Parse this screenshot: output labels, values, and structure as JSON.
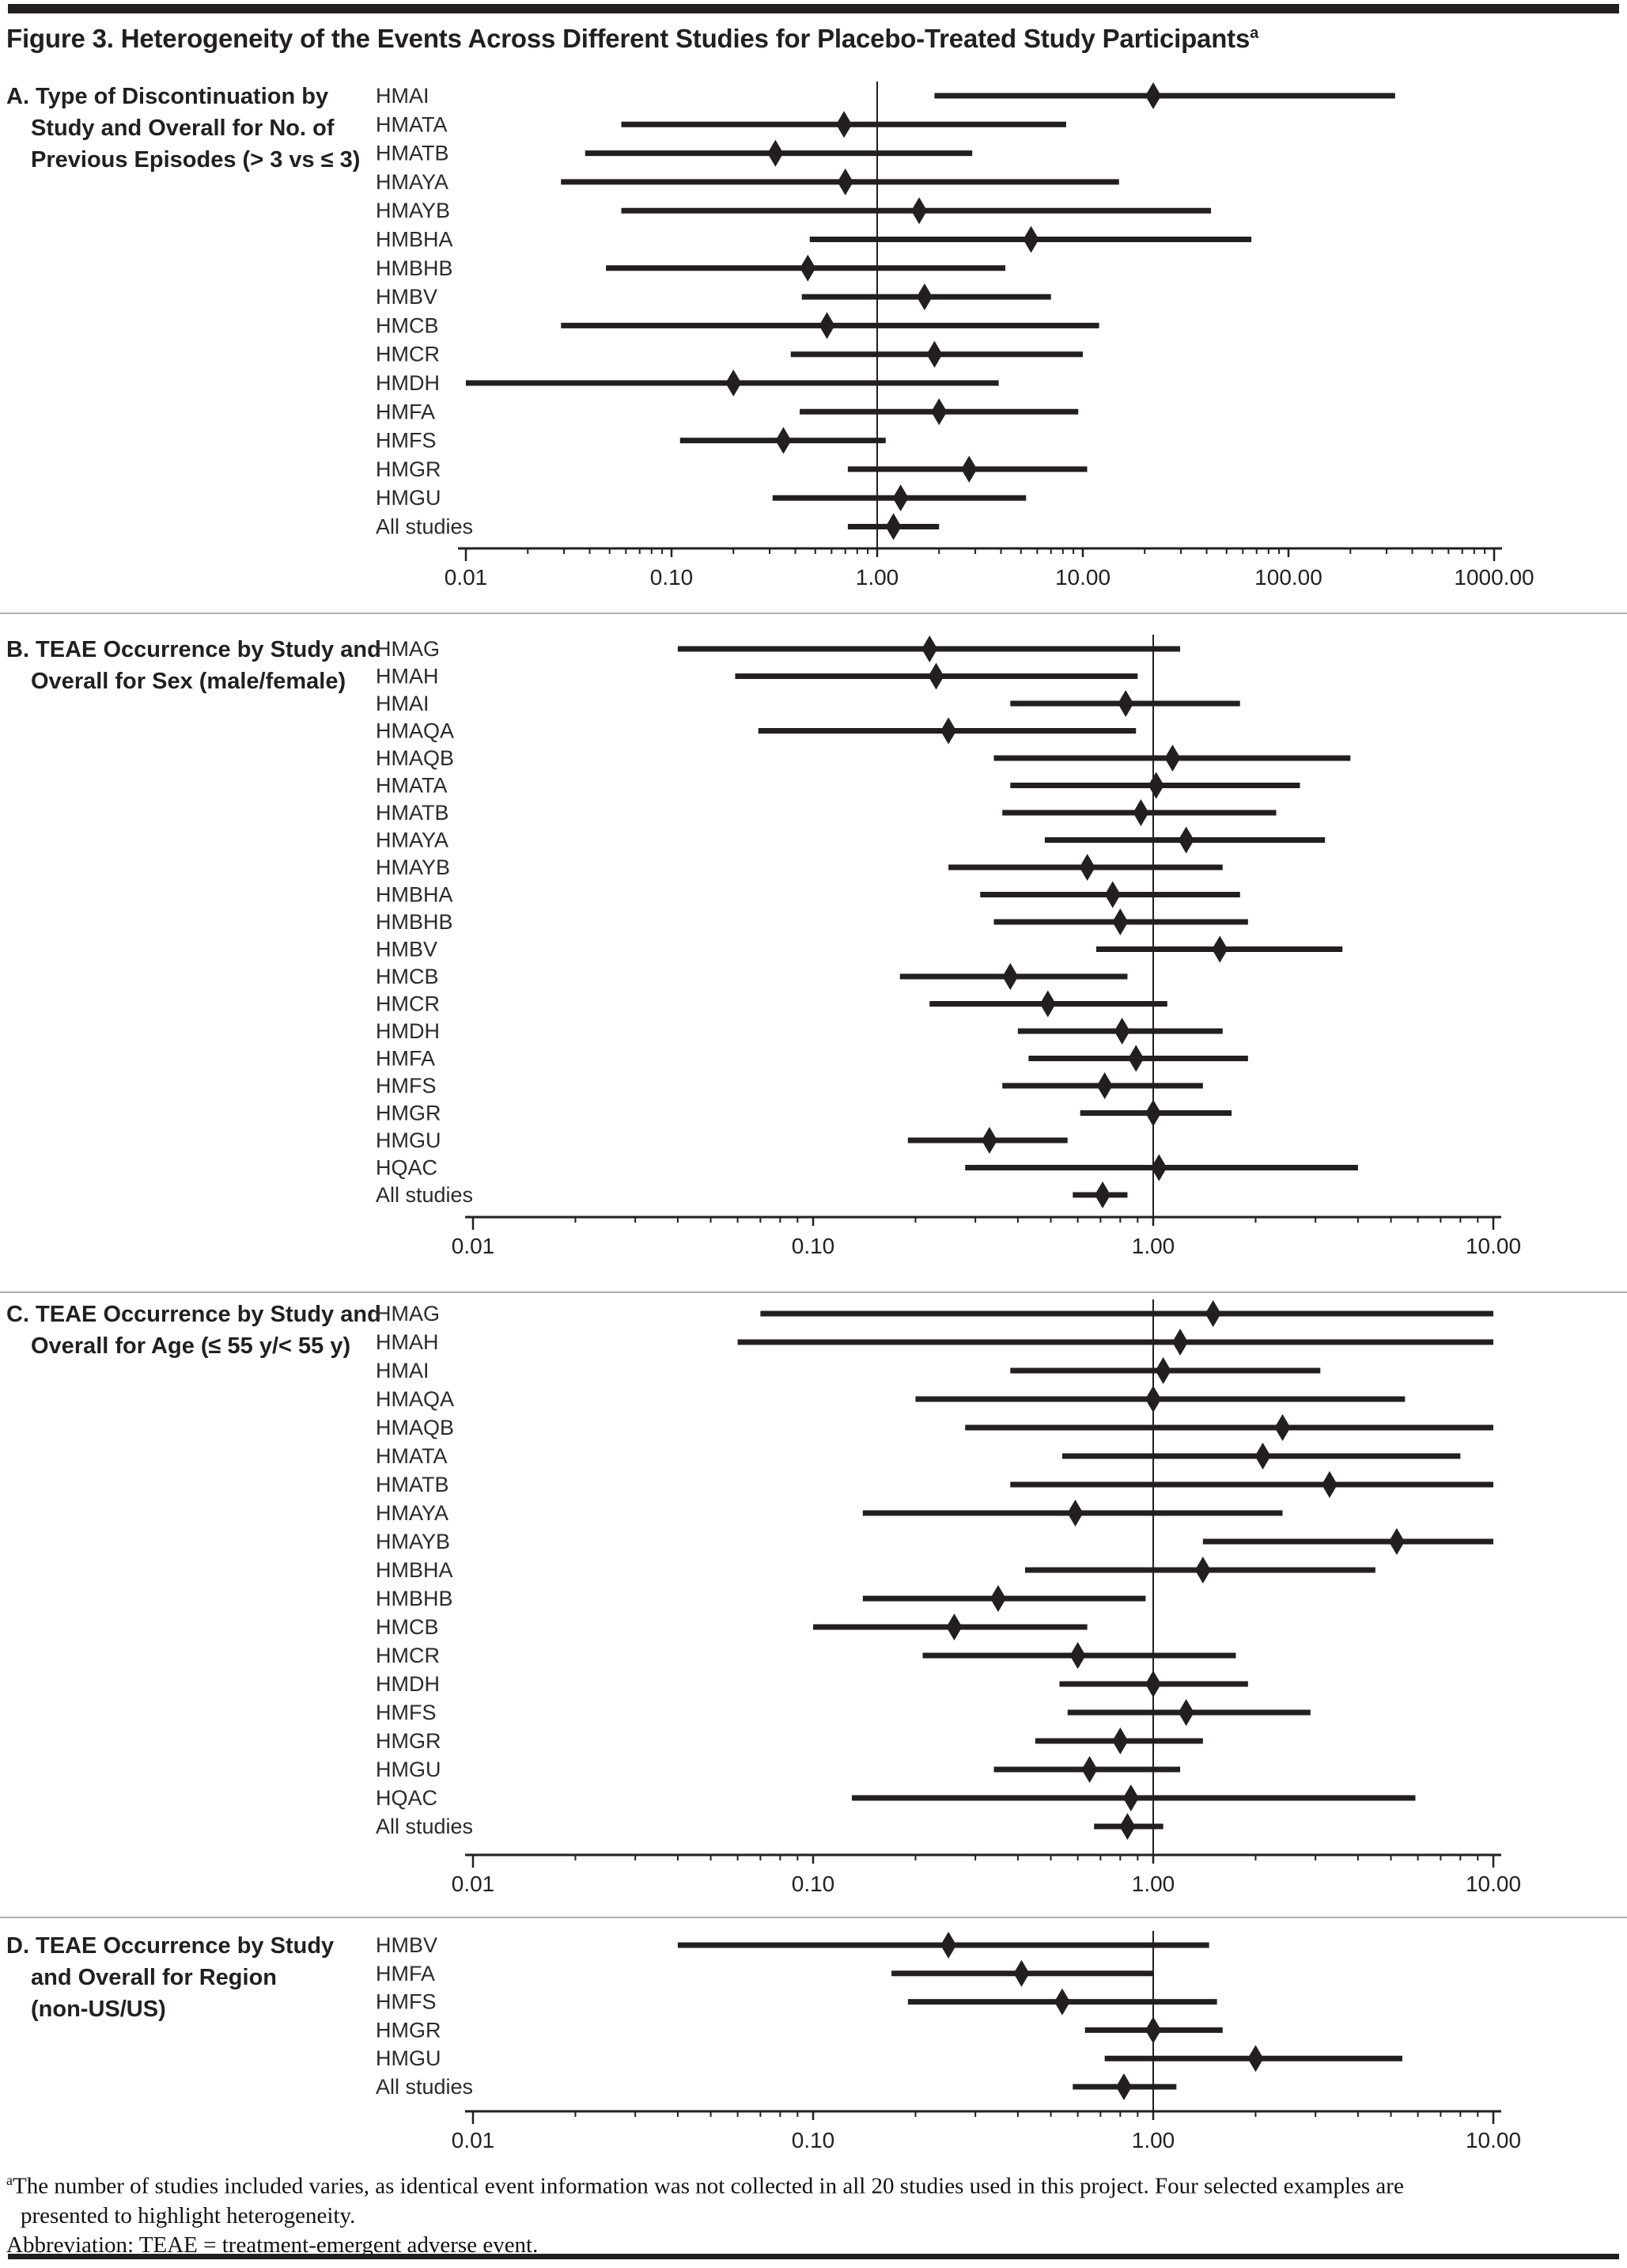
{
  "header": {
    "title": "Figure 3. Heterogeneity of the Events Across Different Studies for Placebo-Treated Study Participants",
    "title_superscript": "a"
  },
  "footnotes": {
    "marker": "a",
    "line1": "The number of studies included varies, as identical event information was not collected in all 20 studies used in this project. Four selected examples are",
    "line2": "presented to highlight heterogeneity.",
    "abbreviation": "Abbreviation: TEAE = treatment-emergent adverse event."
  },
  "chart_data": {
    "type": "forest",
    "x_scale": "log",
    "marker": "diamond",
    "ink_color": "#231f20",
    "separator_color": "#b0b0b0",
    "panels": [
      {
        "id": "A",
        "heading_lines": [
          "A. Type of Discontinuation by",
          "Study and Overall for No. of",
          "Previous Episodes (> 3 vs ≤ 3)"
        ],
        "axis": {
          "min": 0.01,
          "max": 1000,
          "tick_labels": [
            "0.01",
            "0.10",
            "1.00",
            "10.00",
            "100.00",
            "1000.00"
          ],
          "ref_value": 1.0
        },
        "rows": [
          {
            "study": "HMAI",
            "est": 22,
            "lo": 1.9,
            "hi": 330
          },
          {
            "study": "HMATA",
            "est": 0.69,
            "lo": 0.057,
            "hi": 8.3
          },
          {
            "study": "HMATB",
            "est": 0.32,
            "lo": 0.038,
            "hi": 2.9
          },
          {
            "study": "HMAYA",
            "est": 0.7,
            "lo": 0.029,
            "hi": 15
          },
          {
            "study": "HMAYB",
            "est": 1.6,
            "lo": 0.057,
            "hi": 42
          },
          {
            "study": "HMBHA",
            "est": 5.6,
            "lo": 0.47,
            "hi": 66
          },
          {
            "study": "HMBHB",
            "est": 0.46,
            "lo": 0.048,
            "hi": 4.2
          },
          {
            "study": "HMBV",
            "est": 1.7,
            "lo": 0.43,
            "hi": 7.0
          },
          {
            "study": "HMCB",
            "est": 0.57,
            "lo": 0.029,
            "hi": 12
          },
          {
            "study": "HMCR",
            "est": 1.9,
            "lo": 0.38,
            "hi": 10
          },
          {
            "study": "HMDH",
            "est": 0.2,
            "lo": 0.01,
            "hi": 3.9
          },
          {
            "study": "HMFA",
            "est": 2.0,
            "lo": 0.42,
            "hi": 9.5
          },
          {
            "study": "HMFS",
            "est": 0.35,
            "lo": 0.11,
            "hi": 1.1
          },
          {
            "study": "HMGR",
            "est": 2.8,
            "lo": 0.72,
            "hi": 10.5
          },
          {
            "study": "HMGU",
            "est": 1.3,
            "lo": 0.31,
            "hi": 5.3
          },
          {
            "study": "All studies",
            "est": 1.2,
            "lo": 0.72,
            "hi": 2.0
          }
        ]
      },
      {
        "id": "B",
        "heading_lines": [
          "B. TEAE Occurrence by Study and",
          "Overall for Sex (male/female)"
        ],
        "axis": {
          "min": 0.01,
          "max": 10,
          "tick_labels": [
            "0.01",
            "0.10",
            "1.00",
            "10.00"
          ],
          "ref_value": 1.0
        },
        "rows": [
          {
            "study": "HMAG",
            "est": 0.22,
            "lo": 0.04,
            "hi": 1.2
          },
          {
            "study": "HMAH",
            "est": 0.23,
            "lo": 0.059,
            "hi": 0.9
          },
          {
            "study": "HMAI",
            "est": 0.83,
            "lo": 0.38,
            "hi": 1.8
          },
          {
            "study": "HMAQA",
            "est": 0.25,
            "lo": 0.069,
            "hi": 0.89
          },
          {
            "study": "HMAQB",
            "est": 1.14,
            "lo": 0.34,
            "hi": 3.8
          },
          {
            "study": "HMATA",
            "est": 1.02,
            "lo": 0.38,
            "hi": 2.7
          },
          {
            "study": "HMATB",
            "est": 0.92,
            "lo": 0.36,
            "hi": 2.3
          },
          {
            "study": "HMAYA",
            "est": 1.25,
            "lo": 0.48,
            "hi": 3.2
          },
          {
            "study": "HMAYB",
            "est": 0.64,
            "lo": 0.25,
            "hi": 1.6
          },
          {
            "study": "HMBHA",
            "est": 0.76,
            "lo": 0.31,
            "hi": 1.8
          },
          {
            "study": "HMBHB",
            "est": 0.8,
            "lo": 0.34,
            "hi": 1.9
          },
          {
            "study": "HMBV",
            "est": 1.57,
            "lo": 0.68,
            "hi": 3.6
          },
          {
            "study": "HMCB",
            "est": 0.38,
            "lo": 0.18,
            "hi": 0.84
          },
          {
            "study": "HMCR",
            "est": 0.49,
            "lo": 0.22,
            "hi": 1.1
          },
          {
            "study": "HMDH",
            "est": 0.81,
            "lo": 0.4,
            "hi": 1.6
          },
          {
            "study": "HMFA",
            "est": 0.89,
            "lo": 0.43,
            "hi": 1.9
          },
          {
            "study": "HMFS",
            "est": 0.72,
            "lo": 0.36,
            "hi": 1.4
          },
          {
            "study": "HMGR",
            "est": 1.0,
            "lo": 0.61,
            "hi": 1.7
          },
          {
            "study": "HMGU",
            "est": 0.33,
            "lo": 0.19,
            "hi": 0.56
          },
          {
            "study": "HQAC",
            "est": 1.04,
            "lo": 0.28,
            "hi": 4.0
          },
          {
            "study": "All studies",
            "est": 0.71,
            "lo": 0.58,
            "hi": 0.84
          }
        ]
      },
      {
        "id": "C",
        "heading_lines": [
          "C. TEAE Occurrence by Study and",
          "Overall for Age (≤ 55 y/< 55 y)"
        ],
        "axis": {
          "min": 0.01,
          "max": 10,
          "tick_labels": [
            "0.01",
            "0.10",
            "1.00",
            "10.00"
          ],
          "ref_value": 1.0
        },
        "rows": [
          {
            "study": "HMAG",
            "est": 1.5,
            "lo": 0.07,
            "hi": 10
          },
          {
            "study": "HMAH",
            "est": 1.2,
            "lo": 0.06,
            "hi": 10
          },
          {
            "study": "HMAI",
            "est": 1.07,
            "lo": 0.38,
            "hi": 3.1
          },
          {
            "study": "HMAQA",
            "est": 1.0,
            "lo": 0.2,
            "hi": 5.5
          },
          {
            "study": "HMAQB",
            "est": 2.4,
            "lo": 0.28,
            "hi": 10
          },
          {
            "study": "HMATA",
            "est": 2.1,
            "lo": 0.54,
            "hi": 8.0
          },
          {
            "study": "HMATB",
            "est": 3.3,
            "lo": 0.38,
            "hi": 10
          },
          {
            "study": "HMAYA",
            "est": 0.59,
            "lo": 0.14,
            "hi": 2.4
          },
          {
            "study": "HMAYB",
            "est": 5.2,
            "lo": 1.4,
            "hi": 10
          },
          {
            "study": "HMBHA",
            "est": 1.4,
            "lo": 0.42,
            "hi": 4.5
          },
          {
            "study": "HMBHB",
            "est": 0.35,
            "lo": 0.14,
            "hi": 0.95
          },
          {
            "study": "HMCB",
            "est": 0.26,
            "lo": 0.1,
            "hi": 0.64
          },
          {
            "study": "HMCR",
            "est": 0.6,
            "lo": 0.21,
            "hi": 1.75
          },
          {
            "study": "HMDH",
            "est": 1.0,
            "lo": 0.53,
            "hi": 1.9
          },
          {
            "study": "HMFS",
            "est": 1.25,
            "lo": 0.56,
            "hi": 2.9
          },
          {
            "study": "HMGR",
            "est": 0.8,
            "lo": 0.45,
            "hi": 1.4
          },
          {
            "study": "HMGU",
            "est": 0.65,
            "lo": 0.34,
            "hi": 1.2
          },
          {
            "study": "HQAC",
            "est": 0.86,
            "lo": 0.13,
            "hi": 5.9
          },
          {
            "study": "All studies",
            "est": 0.84,
            "lo": 0.67,
            "hi": 1.07
          }
        ]
      },
      {
        "id": "D",
        "heading_lines": [
          "D. TEAE Occurrence by Study",
          "and Overall for Region",
          "(non-US/US)"
        ],
        "axis": {
          "min": 0.01,
          "max": 10,
          "tick_labels": [
            "0.01",
            "0.10",
            "1.00",
            "10.00"
          ],
          "ref_value": 1.0
        },
        "rows": [
          {
            "study": "HMBV",
            "est": 0.25,
            "lo": 0.04,
            "hi": 1.46
          },
          {
            "study": "HMFA",
            "est": 0.41,
            "lo": 0.17,
            "hi": 1.0
          },
          {
            "study": "HMFS",
            "est": 0.54,
            "lo": 0.19,
            "hi": 1.54
          },
          {
            "study": "HMGR",
            "est": 1.0,
            "lo": 0.63,
            "hi": 1.6
          },
          {
            "study": "HMGU",
            "est": 2.0,
            "lo": 0.72,
            "hi": 5.4
          },
          {
            "study": "All studies",
            "est": 0.82,
            "lo": 0.58,
            "hi": 1.17
          }
        ]
      }
    ]
  }
}
